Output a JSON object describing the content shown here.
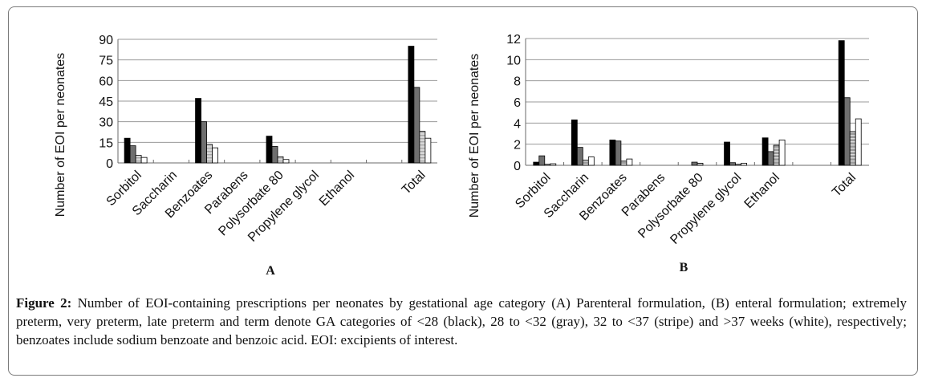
{
  "chart_data": [
    {
      "type": "bar",
      "panel_label": "A",
      "ylabel": "Number of EOI per neonates",
      "ylim": [
        0,
        90
      ],
      "yticks": [
        0,
        15,
        30,
        45,
        60,
        75,
        90
      ],
      "grid": true,
      "categories": [
        "Sorbitol",
        "Saccharin",
        "Benzoates",
        "Parabens",
        "Polysorbate 80",
        "Propylene glycol",
        "Ethanol",
        "",
        "Total"
      ],
      "series": [
        {
          "values": [
            18,
            0,
            47,
            0,
            19.5,
            0,
            0,
            null,
            85
          ],
          "color": "#000000",
          "fill": "solid"
        },
        {
          "values": [
            12.5,
            0,
            30,
            0,
            12,
            0,
            0,
            null,
            55
          ],
          "color": "#6f6f6f",
          "fill": "solid"
        },
        {
          "values": [
            5.5,
            0,
            13.5,
            0,
            4.5,
            0,
            0,
            null,
            23
          ],
          "color": "#c4c4c4",
          "fill": "stripe"
        },
        {
          "values": [
            4,
            0,
            11,
            0,
            2.5,
            0,
            0,
            null,
            18
          ],
          "color": "#ffffff",
          "fill": "solid"
        }
      ]
    },
    {
      "type": "bar",
      "panel_label": "B",
      "ylabel": "Number of EOI per neonates",
      "ylim": [
        0,
        12
      ],
      "yticks": [
        0,
        2,
        4,
        6,
        8,
        10,
        12
      ],
      "grid": true,
      "categories": [
        "Sorbitol",
        "Saccharin",
        "Benzoates",
        "Parabens",
        "Polysorbate 80",
        "Propylene glycol",
        "Ethanol",
        "",
        "Total"
      ],
      "series": [
        {
          "values": [
            0.3,
            4.3,
            2.4,
            0,
            0,
            2.2,
            2.6,
            null,
            11.8
          ],
          "color": "#000000",
          "fill": "solid"
        },
        {
          "values": [
            0.9,
            1.7,
            2.3,
            0,
            0.3,
            0.25,
            1.3,
            null,
            6.4
          ],
          "color": "#6f6f6f",
          "fill": "solid"
        },
        {
          "values": [
            0.1,
            0.5,
            0.4,
            0,
            0.2,
            0.1,
            1.9,
            null,
            3.2
          ],
          "color": "#8a8a8a",
          "fill": "stripe"
        },
        {
          "values": [
            0.15,
            0.8,
            0.6,
            0,
            0,
            0.2,
            2.4,
            null,
            4.4
          ],
          "color": "#ffffff",
          "fill": "solid"
        }
      ]
    }
  ],
  "caption": {
    "label": "Figure 2:",
    "text": "Number of EOI-containing prescriptions per neonates by gestational age category (A) Parenteral formulation, (B) enteral formulation; extremely preterm, very preterm, late preterm and term denote GA categories of <28 (black), 28 to <32 (gray), 32 to <37 (stripe) and >37 weeks (white), respectively; benzoates include sodium benzoate and benzoic acid. EOI: excipients of interest."
  }
}
